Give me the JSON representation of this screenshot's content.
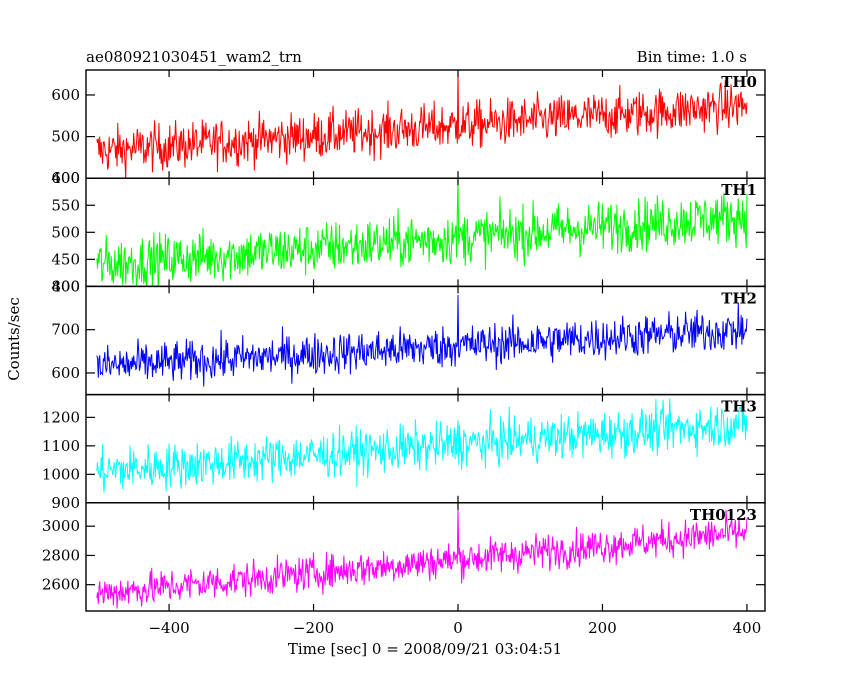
{
  "header": {
    "title": "ae080921030451_wam2_trn",
    "bin_time": "Bin time: 1.0 s"
  },
  "chart_data": {
    "type": "line",
    "xlabel": "Time [sec] 0 = 2008/09/21 03:04:51",
    "ylabel": "Counts/sec",
    "xlim": [
      -515,
      425
    ],
    "x_ticks": [
      -400,
      -200,
      0,
      200,
      400
    ],
    "x_range": [
      -500,
      400
    ],
    "burst_time": 0,
    "panels": [
      {
        "name": "TH0",
        "color": "#ff0000",
        "ylim": [
          400,
          660
        ],
        "ticks": [
          400,
          500,
          600
        ],
        "y_start": 465,
        "y_end": 575,
        "noise": 28,
        "spike_at": 0,
        "spike_value": 660
      },
      {
        "name": "TH1",
        "color": "#00ff00",
        "ylim": [
          400,
          600
        ],
        "ticks": [
          400,
          450,
          500,
          550,
          600
        ],
        "y_start": 440,
        "y_end": 530,
        "noise": 24,
        "spike_at": 0,
        "spike_value": 600
      },
      {
        "name": "TH2",
        "color": "#0000ff",
        "ylim": [
          550,
          800
        ],
        "ticks": [
          600,
          700,
          800
        ],
        "y_start": 615,
        "y_end": 700,
        "noise": 24,
        "spike_at": 0,
        "spike_value": 780
      },
      {
        "name": "TH3",
        "color": "#00ffff",
        "ylim": [
          900,
          1280
        ],
        "ticks": [
          900,
          1000,
          1100,
          1200
        ],
        "y_start": 1010,
        "y_end": 1180,
        "noise": 40,
        "spike_at": 0,
        "spike_value": 1190
      },
      {
        "name": "TH0123",
        "color": "#ff00ff",
        "ylim": [
          2420,
          3160
        ],
        "ticks": [
          2600,
          2800,
          3000
        ],
        "y_start": 2540,
        "y_end": 2960,
        "noise": 60,
        "spike_at": 0,
        "spike_value": 3130
      }
    ]
  }
}
